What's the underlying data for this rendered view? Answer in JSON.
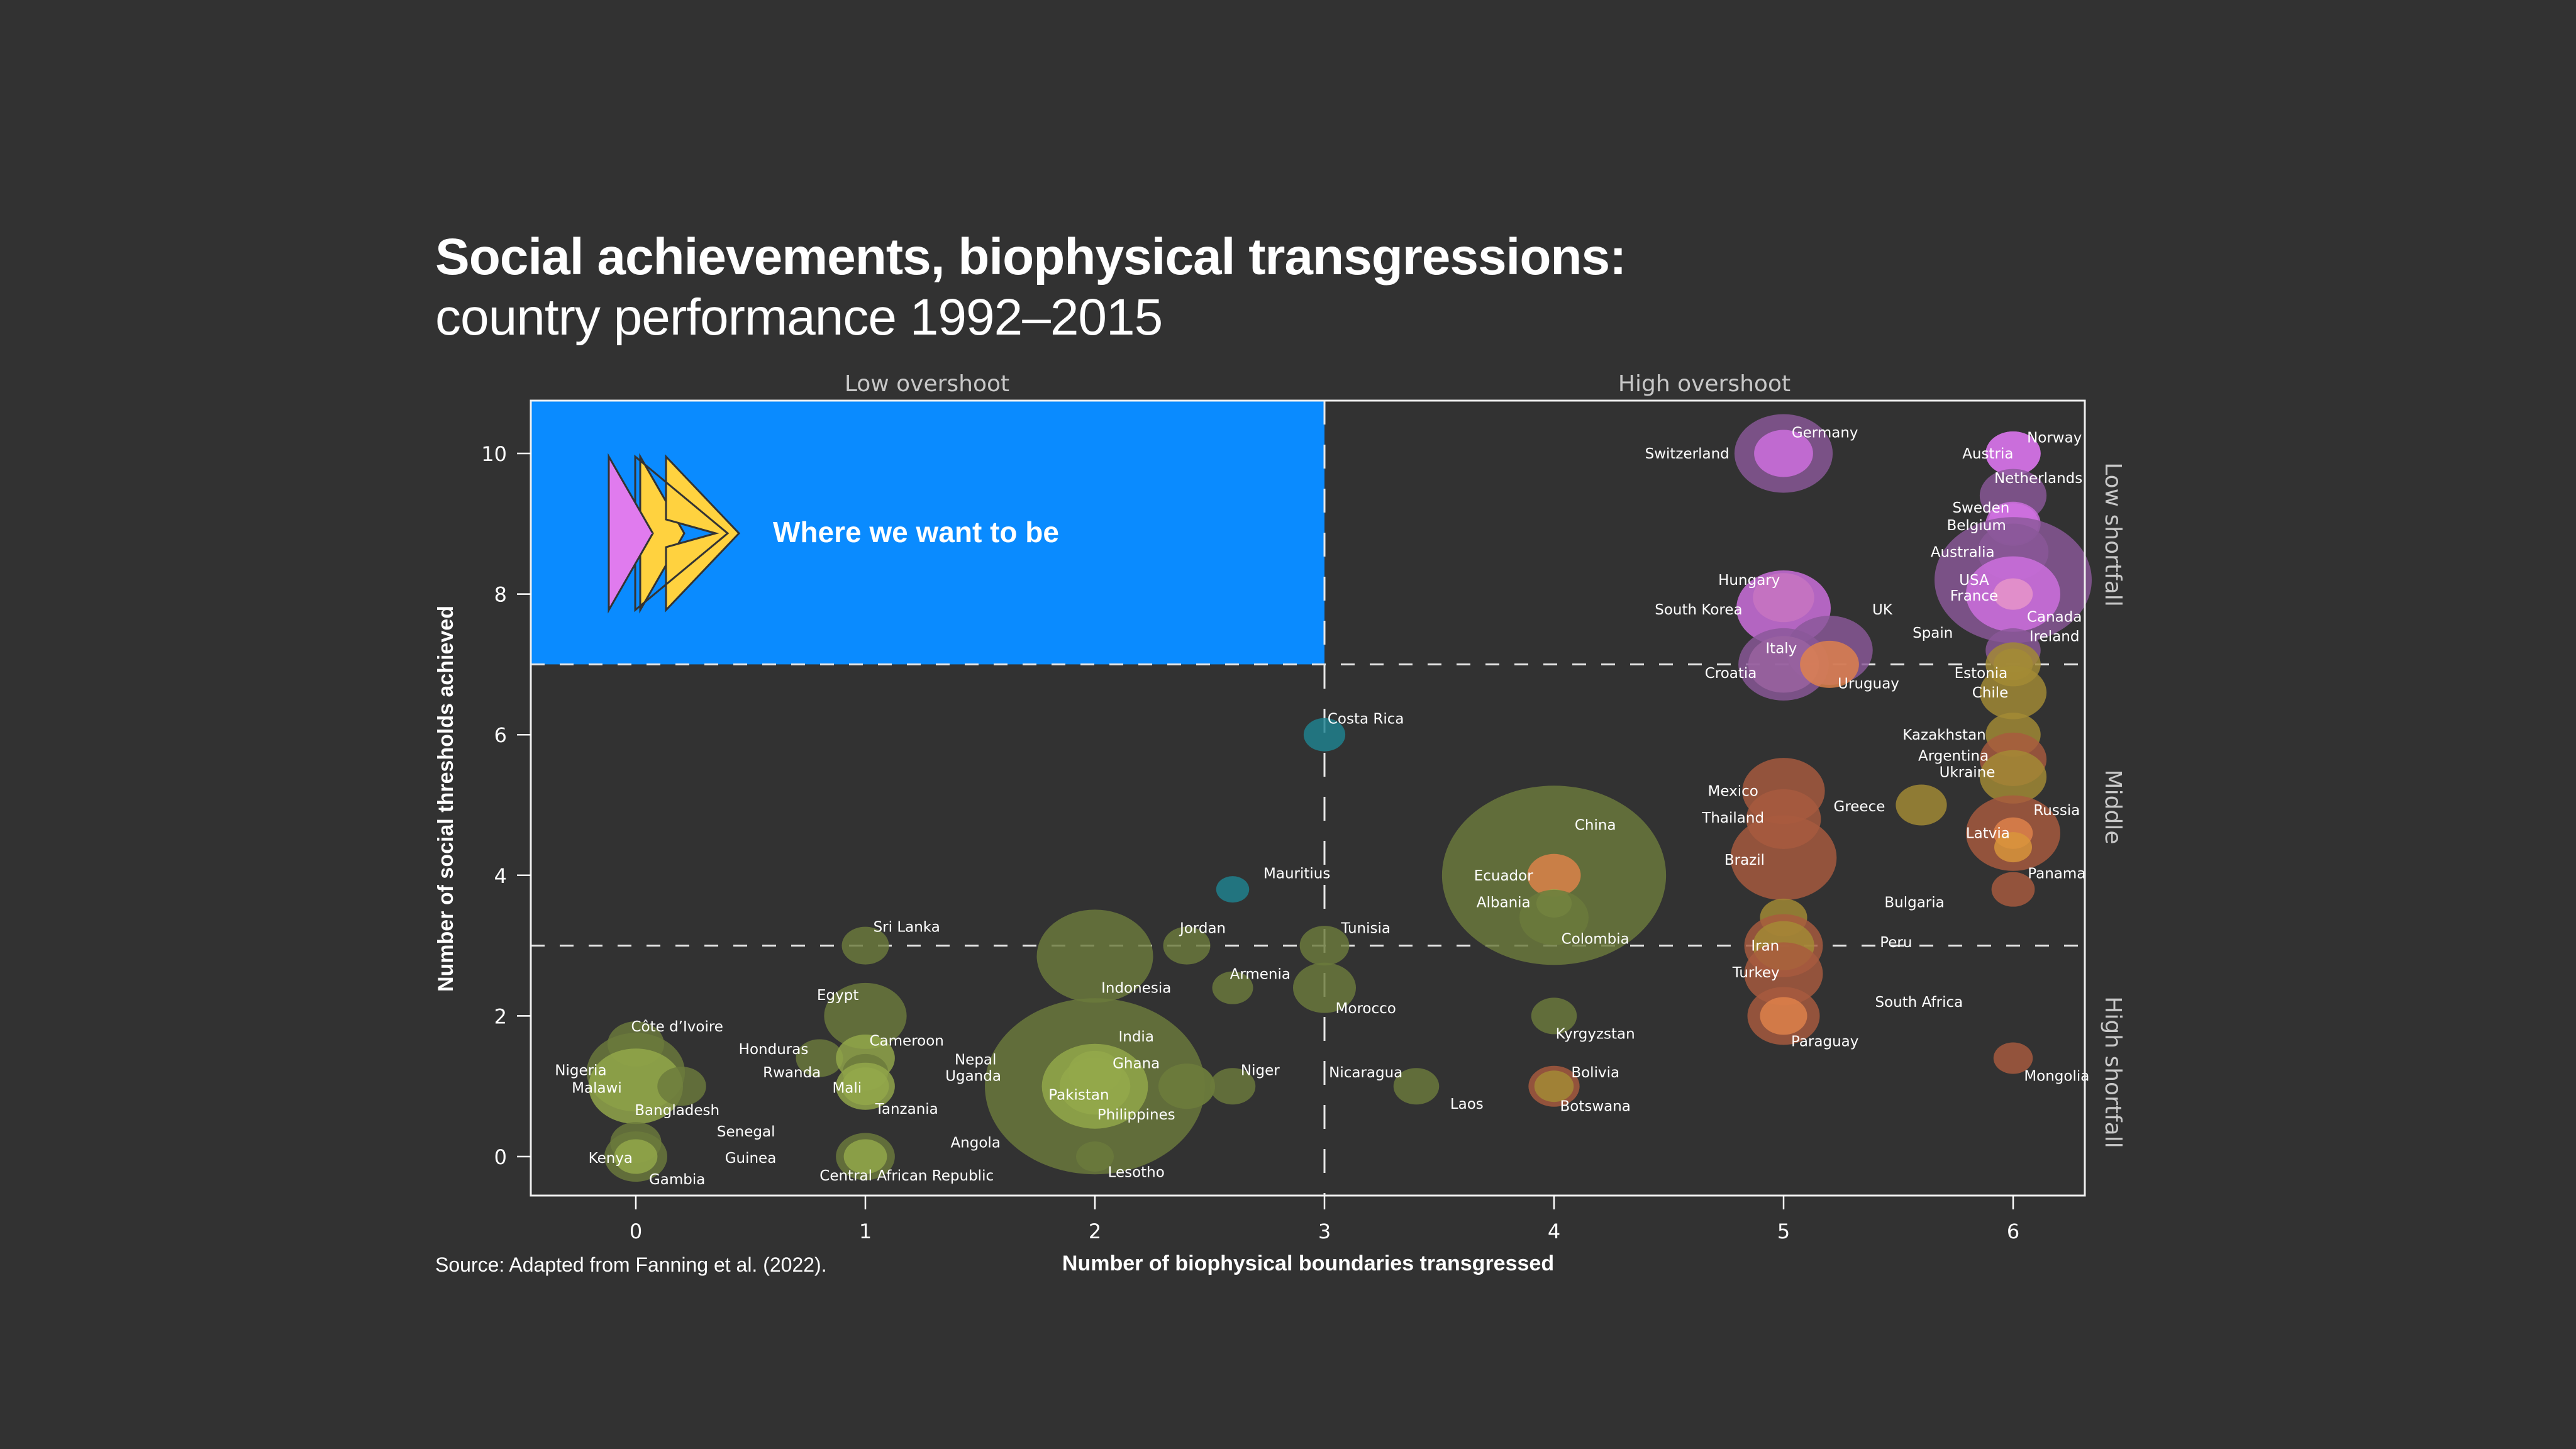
{
  "header": {
    "title": "Social achievements, biophysical transgressions:",
    "subtitle": "country performance 1992–2015"
  },
  "source": "Source: Adapted from Fanning et al. (2022).",
  "colors": {
    "background": "#323232",
    "target_zone": "#0A8BFF",
    "arrow_pink": "#E07BEE",
    "arrow_blue": "#0A8BFF",
    "arrow_yellow": "#FFD23F",
    "categories": {
      "low_income": "#6B7A3C",
      "low_income_light": "#94A84A",
      "teal": "#1E8290",
      "olive_gold": "#A38B35",
      "rust": "#A85A3E",
      "orange": "#E0824A",
      "purple": "#8A5898",
      "magenta": "#D070E0"
    }
  },
  "chart_data": {
    "type": "scatter",
    "title": "Social achievements, biophysical transgressions: country performance 1992–2015",
    "xlabel": "Number of biophysical boundaries transgressed",
    "ylabel": "Number of social thresholds achieved",
    "xlim": [
      -0.45,
      6.3
    ],
    "ylim": [
      -0.55,
      10.75
    ],
    "xticks": [
      0,
      1,
      2,
      3,
      4,
      5,
      6
    ],
    "yticks": [
      0,
      2,
      4,
      6,
      8,
      10
    ],
    "grid": false,
    "reference_lines": {
      "x": 3,
      "y": [
        3,
        7
      ]
    },
    "column_labels": [
      "Low overshoot",
      "High overshoot"
    ],
    "row_labels": [
      "Low shortfall",
      "Middle",
      "High shortfall"
    ],
    "target_zone": {
      "label": "Where we want to be",
      "x_range": [
        -0.45,
        3
      ],
      "y_range": [
        7,
        10.75
      ]
    },
    "bubble_size_note": "relative",
    "points": [
      {
        "name": "Germany",
        "x": 5,
        "y": 10,
        "size": 1.25,
        "color": "purple"
      },
      {
        "name": "Switzerland",
        "x": 5,
        "y": 10,
        "size": 0.75,
        "color": "magenta"
      },
      {
        "name": "Norway",
        "x": 6,
        "y": 10,
        "size": 0.7,
        "color": "magenta"
      },
      {
        "name": "Austria",
        "x": 6,
        "y": 10,
        "size": 0.7,
        "color": "magenta"
      },
      {
        "name": "Netherlands",
        "x": 6,
        "y": 9.4,
        "size": 0.85,
        "color": "purple"
      },
      {
        "name": "Sweden",
        "x": 6,
        "y": 9,
        "size": 0.7,
        "color": "magenta"
      },
      {
        "name": "Belgium",
        "x": 6,
        "y": 9,
        "size": 0.65,
        "color": "magenta"
      },
      {
        "name": "Australia",
        "x": 6,
        "y": 8.6,
        "size": 0.9,
        "color": "purple"
      },
      {
        "name": "USA",
        "x": 6,
        "y": 8.2,
        "size": 2.0,
        "color": "purple"
      },
      {
        "name": "France",
        "x": 6,
        "y": 8,
        "size": 1.2,
        "color": "magenta"
      },
      {
        "name": "Canada",
        "x": 6,
        "y": 8,
        "size": 0.5,
        "color": "pink"
      },
      {
        "name": "Hungary",
        "x": 5,
        "y": 7.95,
        "size": 0.78,
        "color": "olive_gold"
      },
      {
        "name": "South Korea",
        "x": 5,
        "y": 7.8,
        "size": 1.2,
        "color": "magenta"
      },
      {
        "name": "UK",
        "x": 5.2,
        "y": 7.2,
        "size": 1.1,
        "color": "purple"
      },
      {
        "name": "Ireland",
        "x": 6,
        "y": 7.2,
        "size": 0.7,
        "color": "purple"
      },
      {
        "name": "Spain",
        "x": 6,
        "y": 7,
        "size": 0.7,
        "color": "olive_gold"
      },
      {
        "name": "Italy",
        "x": 5,
        "y": 7,
        "size": 0.9,
        "color": "pink"
      },
      {
        "name": "Croatia",
        "x": 5,
        "y": 7,
        "size": 1.15,
        "color": "purple"
      },
      {
        "name": "Uruguay",
        "x": 5.2,
        "y": 7,
        "size": 0.75,
        "color": "orange"
      },
      {
        "name": "Estonia",
        "x": 6,
        "y": 7,
        "size": 0.5,
        "color": "olive_gold"
      },
      {
        "name": "Chile",
        "x": 6,
        "y": 6.6,
        "size": 0.85,
        "color": "olive_gold"
      },
      {
        "name": "Costa Rica",
        "x": 3,
        "y": 6,
        "size": 0.53,
        "color": "teal"
      },
      {
        "name": "Kazakhstan",
        "x": 6,
        "y": 6,
        "size": 0.7,
        "color": "olive_gold"
      },
      {
        "name": "Argentina",
        "x": 6,
        "y": 5.65,
        "size": 0.85,
        "color": "rust"
      },
      {
        "name": "Ukraine",
        "x": 6,
        "y": 5.4,
        "size": 0.85,
        "color": "olive_gold"
      },
      {
        "name": "Mexico",
        "x": 5,
        "y": 5.2,
        "size": 1.05,
        "color": "rust"
      },
      {
        "name": "Greece",
        "x": 5.6,
        "y": 5,
        "size": 0.65,
        "color": "olive_gold"
      },
      {
        "name": "Thailand",
        "x": 5,
        "y": 4.8,
        "size": 0.95,
        "color": "rust"
      },
      {
        "name": "Russia",
        "x": 6,
        "y": 4.6,
        "size": 1.2,
        "color": "rust"
      },
      {
        "name": "Latvia",
        "x": 6,
        "y": 4.6,
        "size": 0.5,
        "color": "orange"
      },
      {
        "name": "Latvia-2",
        "x": 6,
        "y": 4.4,
        "size": 0.48,
        "color": "orange_gold"
      },
      {
        "name": "Brazil",
        "x": 5,
        "y": 4.25,
        "size": 1.35,
        "color": "rust"
      },
      {
        "name": "China",
        "x": 4,
        "y": 4,
        "size": 2.85,
        "color": "low_income"
      },
      {
        "name": "Ecuador",
        "x": 4,
        "y": 4,
        "size": 0.68,
        "color": "orange"
      },
      {
        "name": "Panama",
        "x": 6,
        "y": 3.8,
        "size": 0.55,
        "color": "rust"
      },
      {
        "name": "Mauritius",
        "x": 2.6,
        "y": 3.8,
        "size": 0.42,
        "color": "teal"
      },
      {
        "name": "Albania",
        "x": 4,
        "y": 3.6,
        "size": 0.45,
        "color": "low_income_light"
      },
      {
        "name": "Colombia",
        "x": 4,
        "y": 3.4,
        "size": 0.88,
        "color": "low_income"
      },
      {
        "name": "Bulgaria",
        "x": 5,
        "y": 3.4,
        "size": 0.6,
        "color": "olive_gold"
      },
      {
        "name": "Iran",
        "x": 5,
        "y": 3,
        "size": 1.0,
        "color": "rust"
      },
      {
        "name": "Peru",
        "x": 5,
        "y": 3,
        "size": 0.78,
        "color": "olive_gold"
      },
      {
        "name": "Sri Lanka",
        "x": 1,
        "y": 3,
        "size": 0.6,
        "color": "low_income"
      },
      {
        "name": "Jordan",
        "x": 2.4,
        "y": 3,
        "size": 0.6,
        "color": "low_income"
      },
      {
        "name": "Tunisia",
        "x": 3,
        "y": 3,
        "size": 0.63,
        "color": "low_income"
      },
      {
        "name": "Indonesia",
        "x": 2,
        "y": 2.85,
        "size": 1.48,
        "color": "low_income"
      },
      {
        "name": "Turkey",
        "x": 5,
        "y": 2.6,
        "size": 1.0,
        "color": "rust"
      },
      {
        "name": "Armenia",
        "x": 2.6,
        "y": 2.4,
        "size": 0.52,
        "color": "low_income"
      },
      {
        "name": "Morocco",
        "x": 3,
        "y": 2.4,
        "size": 0.8,
        "color": "low_income"
      },
      {
        "name": "Egypt",
        "x": 1,
        "y": 2,
        "size": 1.05,
        "color": "low_income"
      },
      {
        "name": "Kyrgyzstan",
        "x": 4,
        "y": 2,
        "size": 0.58,
        "color": "low_income"
      },
      {
        "name": "Paraguay",
        "x": 5,
        "y": 2,
        "size": 0.92,
        "color": "rust"
      },
      {
        "name": "South Africa",
        "x": 5,
        "y": 2,
        "size": 0.6,
        "color": "orange"
      },
      {
        "name": "Côte d’Ivoire",
        "x": 0,
        "y": 1.6,
        "size": 0.72,
        "color": "low_income"
      },
      {
        "name": "Honduras",
        "x": 0.8,
        "y": 1.4,
        "size": 0.6,
        "color": "low_income"
      },
      {
        "name": "Cameroon",
        "x": 1,
        "y": 1.4,
        "size": 0.75,
        "color": "low_income_light"
      },
      {
        "name": "Mongolia",
        "x": 6,
        "y": 1.4,
        "size": 0.5,
        "color": "rust"
      },
      {
        "name": "Rwanda",
        "x": 1,
        "y": 1.2,
        "size": 0.58,
        "color": "low_income"
      },
      {
        "name": "Nigeria",
        "x": 0,
        "y": 1.2,
        "size": 1.25,
        "color": "low_income"
      },
      {
        "name": "Malawi",
        "x": 0,
        "y": 1,
        "size": 1.2,
        "color": "low_income_light"
      },
      {
        "name": "Bangladesh",
        "x": 0.2,
        "y": 1,
        "size": 0.62,
        "color": "low_income"
      },
      {
        "name": "Mali",
        "x": 1,
        "y": 1,
        "size": 0.75,
        "color": "low_income_light"
      },
      {
        "name": "Tanzania",
        "x": 1,
        "y": 1,
        "size": 0.6,
        "color": "low_income_light"
      },
      {
        "name": "India",
        "x": 2,
        "y": 1,
        "size": 2.8,
        "color": "low_income"
      },
      {
        "name": "Pakistan",
        "x": 2,
        "y": 1,
        "size": 1.35,
        "color": "low_income_light"
      },
      {
        "name": "Ghana",
        "x": 2,
        "y": 1.2,
        "size": 0.68,
        "color": "low_income_light"
      },
      {
        "name": "Philippines",
        "x": 2,
        "y": 1,
        "size": 0.9,
        "color": "low_income_light"
      },
      {
        "name": "Nepal",
        "x": 2.4,
        "y": 1,
        "size": 0.72,
        "color": "low_income"
      },
      {
        "name": "Uganda",
        "x": 2.4,
        "y": 1,
        "size": 0.72,
        "color": "low_income"
      },
      {
        "name": "Niger",
        "x": 2.6,
        "y": 1,
        "size": 0.58,
        "color": "low_income"
      },
      {
        "name": "Nicaragua",
        "x": 3.4,
        "y": 1,
        "size": 0.58,
        "color": "low_income"
      },
      {
        "name": "Bolivia",
        "x": 4,
        "y": 1,
        "size": 0.65,
        "color": "rust"
      },
      {
        "name": "Botswana",
        "x": 4,
        "y": 1,
        "size": 0.5,
        "color": "olive_gold"
      },
      {
        "name": "Laos",
        "x": 3.4,
        "y": 1,
        "size": 0.0,
        "color": "none"
      },
      {
        "name": "Senegal",
        "x": 0,
        "y": 0.2,
        "size": 0.65,
        "color": "low_income"
      },
      {
        "name": "Kenya",
        "x": 0,
        "y": 0,
        "size": 0.8,
        "color": "low_income"
      },
      {
        "name": "Gambia",
        "x": 0,
        "y": 0,
        "size": 0.55,
        "color": "low_income_light"
      },
      {
        "name": "Guinea",
        "x": 1,
        "y": 0,
        "size": 0.75,
        "color": "low_income"
      },
      {
        "name": "Central African Republic",
        "x": 1,
        "y": 0,
        "size": 0.55,
        "color": "low_income_light"
      },
      {
        "name": "Angola",
        "x": 2,
        "y": 0,
        "size": 0.48,
        "color": "low_income"
      },
      {
        "name": "Lesotho",
        "x": 2,
        "y": 0,
        "size": 0.0,
        "color": "none"
      }
    ],
    "labels": [
      {
        "text": "Germany",
        "x": 5.18,
        "y": 10.3
      },
      {
        "text": "Switzerland",
        "x": 4.58,
        "y": 10.0
      },
      {
        "text": "Norway",
        "x": 6.18,
        "y": 10.23
      },
      {
        "text": "Austria",
        "x": 5.89,
        "y": 10.0
      },
      {
        "text": "Netherlands",
        "x": 6.11,
        "y": 9.65
      },
      {
        "text": "Sweden",
        "x": 5.86,
        "y": 9.23
      },
      {
        "text": "Belgium",
        "x": 5.84,
        "y": 8.98
      },
      {
        "text": "Australia",
        "x": 5.78,
        "y": 8.6
      },
      {
        "text": "USA",
        "x": 5.83,
        "y": 8.2
      },
      {
        "text": "France",
        "x": 5.83,
        "y": 7.98
      },
      {
        "text": "Canada",
        "x": 6.18,
        "y": 7.68
      },
      {
        "text": "Ireland",
        "x": 6.18,
        "y": 7.4
      },
      {
        "text": "Hungary",
        "x": 4.85,
        "y": 8.2
      },
      {
        "text": "South Korea",
        "x": 4.63,
        "y": 7.78
      },
      {
        "text": "UK",
        "x": 5.43,
        "y": 7.78
      },
      {
        "text": "Spain",
        "x": 5.65,
        "y": 7.45
      },
      {
        "text": "Italy",
        "x": 4.99,
        "y": 7.23
      },
      {
        "text": "Croatia",
        "x": 4.77,
        "y": 6.88
      },
      {
        "text": "Uruguay",
        "x": 5.37,
        "y": 6.73
      },
      {
        "text": "Estonia",
        "x": 5.86,
        "y": 6.88
      },
      {
        "text": "Chile",
        "x": 5.9,
        "y": 6.6
      },
      {
        "text": "Costa Rica",
        "x": 3.18,
        "y": 6.23
      },
      {
        "text": "Kazakhstan",
        "x": 5.7,
        "y": 6.0
      },
      {
        "text": "Argentina",
        "x": 5.74,
        "y": 5.7
      },
      {
        "text": "Ukraine",
        "x": 5.8,
        "y": 5.47
      },
      {
        "text": "Mexico",
        "x": 4.78,
        "y": 5.2
      },
      {
        "text": "Thailand",
        "x": 4.78,
        "y": 4.82
      },
      {
        "text": "Greece",
        "x": 5.33,
        "y": 4.98
      },
      {
        "text": "Russia",
        "x": 6.19,
        "y": 4.93
      },
      {
        "text": "Latvia",
        "x": 5.89,
        "y": 4.6
      },
      {
        "text": "Brazil",
        "x": 4.83,
        "y": 4.22
      },
      {
        "text": "China",
        "x": 4.18,
        "y": 4.72
      },
      {
        "text": "Ecuador",
        "x": 3.78,
        "y": 4.0
      },
      {
        "text": "Panama",
        "x": 6.19,
        "y": 4.03
      },
      {
        "text": "Mauritius",
        "x": 2.88,
        "y": 4.03
      },
      {
        "text": "Albania",
        "x": 3.78,
        "y": 3.62
      },
      {
        "text": "Bulgaria",
        "x": 5.57,
        "y": 3.62
      },
      {
        "text": "Colombia",
        "x": 4.18,
        "y": 3.1
      },
      {
        "text": "Iran",
        "x": 4.92,
        "y": 3.0
      },
      {
        "text": "Peru",
        "x": 5.49,
        "y": 3.05
      },
      {
        "text": "Sri Lanka",
        "x": 1.18,
        "y": 3.27
      },
      {
        "text": "Jordan",
        "x": 2.47,
        "y": 3.25
      },
      {
        "text": "Tunisia",
        "x": 3.18,
        "y": 3.25
      },
      {
        "text": "Indonesia",
        "x": 2.18,
        "y": 2.4
      },
      {
        "text": "Turkey",
        "x": 4.88,
        "y": 2.62
      },
      {
        "text": "Armenia",
        "x": 2.72,
        "y": 2.6
      },
      {
        "text": "Morocco",
        "x": 3.18,
        "y": 2.11
      },
      {
        "text": "Egypt",
        "x": 0.88,
        "y": 2.3
      },
      {
        "text": "Kyrgyzstan",
        "x": 4.18,
        "y": 1.75
      },
      {
        "text": "Paraguay",
        "x": 5.18,
        "y": 1.64
      },
      {
        "text": "South Africa",
        "x": 5.59,
        "y": 2.2
      },
      {
        "text": "Côte d’Ivoire",
        "x": 0.18,
        "y": 1.85
      },
      {
        "text": "Honduras",
        "x": 0.6,
        "y": 1.53
      },
      {
        "text": "Cameroon",
        "x": 1.18,
        "y": 1.65
      },
      {
        "text": "Rwanda",
        "x": 0.68,
        "y": 1.2
      },
      {
        "text": "Nigeria",
        "x": -0.24,
        "y": 1.23
      },
      {
        "text": "Malawi",
        "x": -0.17,
        "y": 0.98
      },
      {
        "text": "Bangladesh",
        "x": 0.18,
        "y": 0.66
      },
      {
        "text": "Mali",
        "x": 0.92,
        "y": 0.98
      },
      {
        "text": "Tanzania",
        "x": 1.18,
        "y": 0.68
      },
      {
        "text": "India",
        "x": 2.18,
        "y": 1.71
      },
      {
        "text": "Ghana",
        "x": 2.18,
        "y": 1.33
      },
      {
        "text": "Nepal",
        "x": 1.48,
        "y": 1.38
      },
      {
        "text": "Uganda",
        "x": 1.47,
        "y": 1.15
      },
      {
        "text": "Pakistan",
        "x": 1.93,
        "y": 0.88
      },
      {
        "text": "Philippines",
        "x": 2.18,
        "y": 0.6
      },
      {
        "text": "Niger",
        "x": 2.72,
        "y": 1.23
      },
      {
        "text": "Nicaragua",
        "x": 3.18,
        "y": 1.2
      },
      {
        "text": "Laos",
        "x": 3.62,
        "y": 0.75
      },
      {
        "text": "Bolivia",
        "x": 4.18,
        "y": 1.2
      },
      {
        "text": "Botswana",
        "x": 4.18,
        "y": 0.72
      },
      {
        "text": "Mongolia",
        "x": 6.19,
        "y": 1.15
      },
      {
        "text": "Senegal",
        "x": 0.48,
        "y": 0.36
      },
      {
        "text": "Kenya",
        "x": -0.11,
        "y": -0.02
      },
      {
        "text": "Gambia",
        "x": 0.18,
        "y": -0.32
      },
      {
        "text": "Guinea",
        "x": 0.5,
        "y": -0.02
      },
      {
        "text": "Central African Republic",
        "x": 1.18,
        "y": -0.27
      },
      {
        "text": "Angola",
        "x": 1.48,
        "y": 0.2
      },
      {
        "text": "Lesotho",
        "x": 2.18,
        "y": -0.22
      }
    ]
  }
}
